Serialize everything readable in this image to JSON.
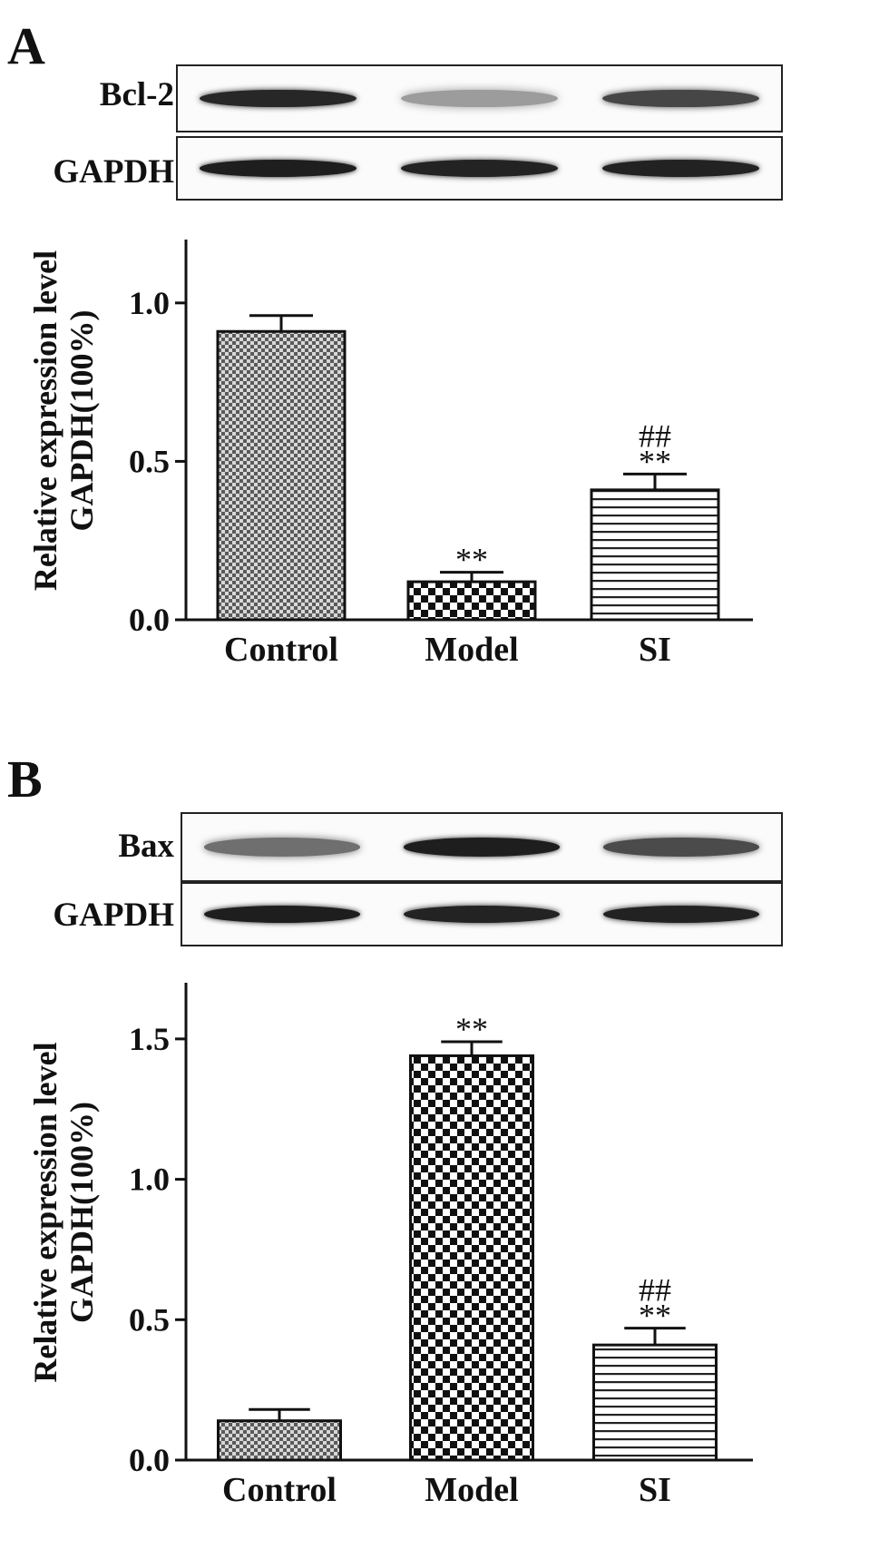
{
  "panels": [
    {
      "letter": "A",
      "blots": [
        {
          "label": "Bcl-2",
          "intensities": [
            0.95,
            0.3,
            0.78
          ]
        },
        {
          "label": "GAPDH",
          "intensities": [
            1.0,
            0.97,
            0.98
          ]
        }
      ]
    },
    {
      "letter": "B",
      "blots": [
        {
          "label": "Bax",
          "intensities": [
            0.55,
            1.0,
            0.75
          ]
        },
        {
          "label": "GAPDH",
          "intensities": [
            1.0,
            0.97,
            0.98
          ]
        }
      ]
    }
  ],
  "chart_data": [
    {
      "type": "bar",
      "categories": [
        "Control",
        "Model",
        "SI"
      ],
      "values": [
        0.91,
        0.12,
        0.41
      ],
      "errors": [
        0.05,
        0.03,
        0.05
      ],
      "annotations": [
        [
          "",
          ""
        ],
        [
          "",
          "**"
        ],
        [
          "##",
          "**"
        ]
      ],
      "ylabel_lines": [
        "Relative expression level",
        "GAPDH(100%)"
      ],
      "ylim": [
        0,
        1.2
      ],
      "yticks": [
        0.0,
        0.5,
        1.0
      ],
      "ytick_labels": [
        "0.0",
        "0.5",
        "1.0"
      ],
      "patterns": [
        "fine-check",
        "check",
        "hlines"
      ],
      "grid": false
    },
    {
      "type": "bar",
      "categories": [
        "Control",
        "Model",
        "SI"
      ],
      "values": [
        0.14,
        1.44,
        0.41
      ],
      "errors": [
        0.04,
        0.05,
        0.06
      ],
      "annotations": [
        [
          "",
          ""
        ],
        [
          "",
          "**"
        ],
        [
          "##",
          "**"
        ]
      ],
      "ylabel_lines": [
        "Relative expression level",
        "GAPDH(100%)"
      ],
      "ylim": [
        0,
        1.7
      ],
      "yticks": [
        0.0,
        0.5,
        1.0,
        1.5
      ],
      "ytick_labels": [
        "0.0",
        "0.5",
        "1.0",
        "1.5"
      ],
      "patterns": [
        "fine-check",
        "check",
        "hlines"
      ],
      "grid": false
    }
  ]
}
